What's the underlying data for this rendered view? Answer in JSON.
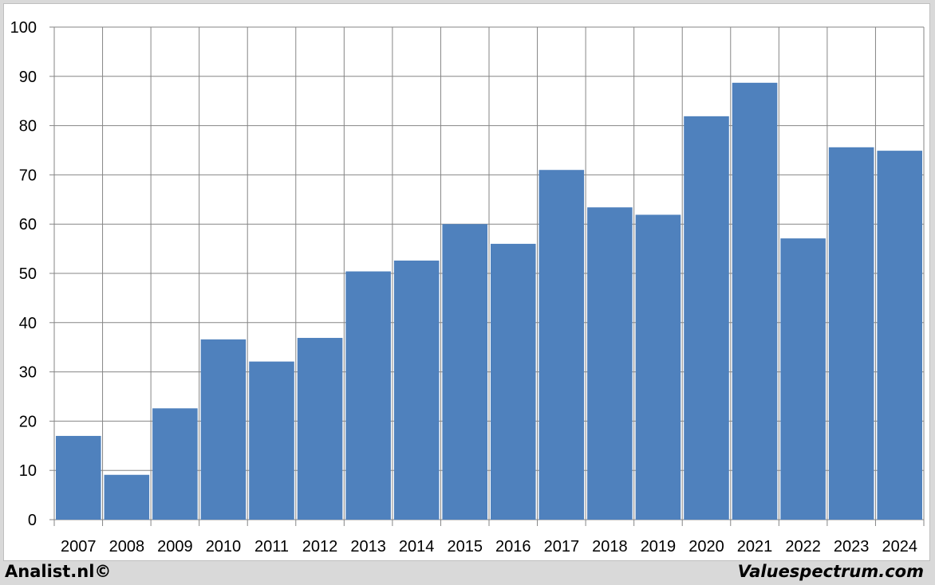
{
  "chart_data": {
    "type": "bar",
    "categories": [
      "2007",
      "2008",
      "2009",
      "2010",
      "2011",
      "2012",
      "2013",
      "2014",
      "2015",
      "2016",
      "2017",
      "2018",
      "2019",
      "2020",
      "2021",
      "2022",
      "2023",
      "2024"
    ],
    "values": [
      17.0,
      9.1,
      22.6,
      36.6,
      32.1,
      36.9,
      50.4,
      52.6,
      60.0,
      56.0,
      71.0,
      63.4,
      61.9,
      81.9,
      88.7,
      57.1,
      75.6,
      74.9
    ],
    "ylim": [
      0,
      100
    ],
    "yticks": [
      0,
      10,
      20,
      30,
      40,
      50,
      60,
      70,
      80,
      90,
      100
    ],
    "grid": true,
    "bar_color": "#4f81bd",
    "grid_color": "#868686"
  },
  "footer": {
    "left": "Analist.nl©",
    "right": "Valuespectrum.com"
  }
}
